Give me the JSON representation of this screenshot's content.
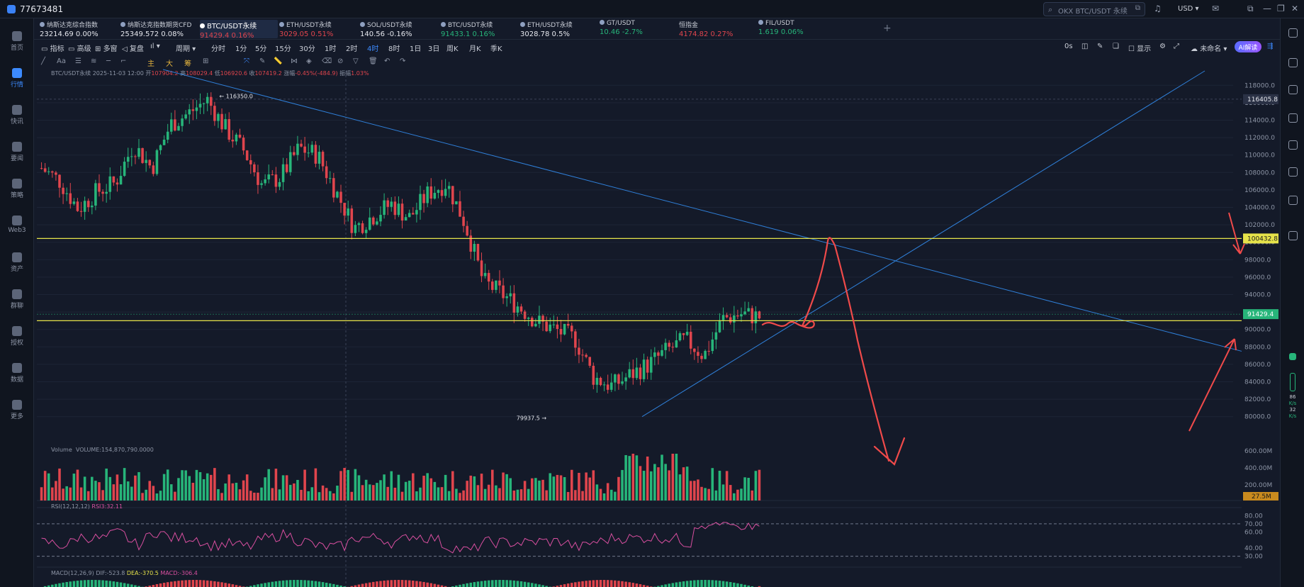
{
  "app": {
    "title": "77673481"
  },
  "search": {
    "placeholder": "OKX BTC/USDT 永续"
  },
  "currency": "USD",
  "nav": [
    {
      "label": "首页",
      "active": false
    },
    {
      "label": "行情",
      "active": true
    },
    {
      "label": "快讯",
      "active": false
    },
    {
      "label": "要闻",
      "active": false
    },
    {
      "label": "策略",
      "active": false
    },
    {
      "label": "Web3",
      "active": false
    },
    {
      "label": "资产",
      "active": false
    },
    {
      "label": "群聊",
      "active": false
    },
    {
      "label": "授权",
      "active": false
    },
    {
      "label": "数据",
      "active": false
    },
    {
      "label": "更多",
      "active": false
    }
  ],
  "tickers": [
    {
      "name": "纳斯达克综合指数",
      "price": "23214.69",
      "change": "0.00%",
      "dir": "nt"
    },
    {
      "name": "纳斯达克指数期货CFD",
      "price": "25349.572",
      "change": "0.08%",
      "dir": "nt"
    },
    {
      "name": "BTC/USDT永续",
      "price": "91429.4",
      "change": "0.16%",
      "dir": "dn"
    },
    {
      "name": "ETH/USDT永续",
      "price": "3029.05",
      "change": "0.51%",
      "dir": "dn"
    },
    {
      "name": "SOL/USDT永续",
      "price": "140.56",
      "change": "-0.16%",
      "dir": "nt"
    },
    {
      "name": "BTC/USDT永续",
      "price": "91433.1",
      "change": "0.16%",
      "dir": "up"
    },
    {
      "name": "ETH/USDT永续",
      "price": "3028.78",
      "change": "0.5%",
      "dir": "nt"
    },
    {
      "name": "GT/USDT",
      "price": "10.46",
      "change": "-2.7%",
      "dir": "up"
    },
    {
      "name": "恒指金",
      "price": "4174.82",
      "change": "0.27%",
      "dir": "dn"
    },
    {
      "name": "FIL/USDT",
      "price": "1.619",
      "change": "0.06%",
      "dir": "up"
    }
  ],
  "toolbar": {
    "indicators": "指标",
    "advanced": "高级",
    "multi": "多窗",
    "replay": "复盘",
    "period": "周期",
    "intervals": [
      "分时",
      "1分",
      "5分",
      "15分",
      "30分",
      "1时",
      "2时",
      "4时",
      "8时",
      "1日",
      "3日",
      "周K",
      "月K",
      "季K"
    ],
    "selected_interval": "4时",
    "countdown": "0s",
    "display": "显示",
    "unnamed": "未命名",
    "ai": "AI解读"
  },
  "draw_tags": [
    "主",
    "大",
    "筹"
  ],
  "chart_info": {
    "symbol": "BTC/USDT永续",
    "time": "2025-11-03 12:00",
    "open_label": "开",
    "open": "107904.2",
    "high_label": "高",
    "high": "108029.4",
    "low_label": "低",
    "low": "106920.6",
    "close_label": "收",
    "close": "107419.2",
    "change_label": "涨幅",
    "change": "-0.45%(-484.9)",
    "amp_label": "振幅",
    "amp": "1.03%"
  },
  "price_axis": {
    "ticks": [
      "118000.0",
      "116000.0",
      "114000.0",
      "112000.0",
      "110000.0",
      "108000.0",
      "106000.0",
      "104000.0",
      "102000.0",
      "100000.0",
      "98000.0",
      "96000.0",
      "94000.0",
      "92000.0",
      "90000.0",
      "88000.0",
      "86000.0",
      "84000.0",
      "82000.0",
      "80000.0"
    ],
    "crosshair": "116405.8",
    "yellow_line": "100432.8",
    "last_price": "91429.4"
  },
  "annotations": {
    "high": "116350.0",
    "low": "79937.5"
  },
  "volume": {
    "label": "Volume",
    "value": "VOLUME:154,870,790.0000",
    "ticks": [
      "600.00M",
      "400.00M",
      "200.00M"
    ],
    "last": "27.5M"
  },
  "rsi": {
    "label": "RSI(12,12,12)",
    "value": "RSI3:32.11",
    "ticks": [
      "80.00",
      "70.00",
      "60.00",
      "40.00",
      "30.00"
    ]
  },
  "macd": {
    "label": "MACD(12,26,9)",
    "dif": "DIF:-523.8",
    "dea": "DEA:-370.5",
    "macd": "MACD:-306.4"
  },
  "side_stats": {
    "a": "86",
    "a_unit": "K/s",
    "b": "32",
    "b_unit": "K/s"
  },
  "colors": {
    "up": "#27b57a",
    "down": "#e0454d",
    "accent": "#3d8bff",
    "yellow": "#e6e34a",
    "drawing": "#f04a4a"
  },
  "chart_data": {
    "type": "candlestick",
    "interval": "4时",
    "ylim": [
      79000,
      119000
    ],
    "high_close_path": [
      108500,
      107000,
      103800,
      105800,
      106800,
      111200,
      108500,
      113500,
      114800,
      116350,
      113000,
      110500,
      106500,
      107500,
      110800,
      110000,
      105800,
      101600,
      103000,
      104400,
      102800,
      105600,
      106800,
      102200,
      95500,
      94100,
      92500,
      90800,
      89900,
      88900,
      84500,
      83500,
      84800,
      86000,
      87600,
      88800,
      87000,
      91200,
      91800,
      91429.4
    ],
    "hand_drawn_path": [
      91429.4,
      91000,
      100800,
      91000,
      79500
    ]
  }
}
